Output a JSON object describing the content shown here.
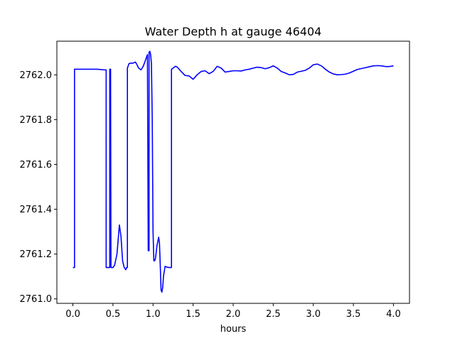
{
  "chart_data": {
    "type": "line",
    "title": "Water Depth h at gauge 46404",
    "xlabel": "hours",
    "ylabel": "",
    "xlim": [
      -0.2,
      4.2
    ],
    "ylim": [
      2760.98,
      2762.15
    ],
    "grid": false,
    "xticks": [
      0.0,
      0.5,
      1.0,
      1.5,
      2.0,
      2.5,
      3.0,
      3.5,
      4.0
    ],
    "xtick_labels": [
      "0.0",
      "0.5",
      "1.0",
      "1.5",
      "2.0",
      "2.5",
      "3.0",
      "3.5",
      "4.0"
    ],
    "yticks": [
      2761.0,
      2761.2,
      2761.4,
      2761.6,
      2761.8,
      2762.0
    ],
    "ytick_labels": [
      "2761.0",
      "2761.2",
      "2761.4",
      "2761.6",
      "2761.8",
      "2762.0"
    ],
    "series": [
      {
        "color": "#0000ff",
        "x": [
          0.0,
          0.02,
          0.02,
          0.05,
          0.1,
          0.2,
          0.3,
          0.4,
          0.415,
          0.415,
          0.46,
          0.46,
          0.47,
          0.475,
          0.48,
          0.48,
          0.5,
          0.52,
          0.55,
          0.58,
          0.6,
          0.62,
          0.64,
          0.66,
          0.67,
          0.68,
          0.68,
          0.7,
          0.72,
          0.75,
          0.78,
          0.8,
          0.82,
          0.85,
          0.88,
          0.9,
          0.93,
          0.94,
          0.95,
          0.95,
          0.96,
          0.96,
          0.97,
          0.98,
          0.99,
          1.0,
          1.01,
          1.02,
          1.03,
          1.05,
          1.07,
          1.08,
          1.09,
          1.1,
          1.11,
          1.12,
          1.13,
          1.15,
          1.17,
          1.2,
          1.23,
          1.23,
          1.25,
          1.28,
          1.3,
          1.35,
          1.4,
          1.45,
          1.5,
          1.55,
          1.6,
          1.65,
          1.7,
          1.75,
          1.8,
          1.85,
          1.9,
          1.95,
          2.0,
          2.05,
          2.1,
          2.15,
          2.2,
          2.25,
          2.3,
          2.35,
          2.4,
          2.45,
          2.5,
          2.55,
          2.6,
          2.65,
          2.7,
          2.75,
          2.8,
          2.85,
          2.9,
          2.95,
          3.0,
          3.05,
          3.1,
          3.15,
          3.2,
          3.25,
          3.3,
          3.35,
          3.4,
          3.45,
          3.5,
          3.55,
          3.6,
          3.65,
          3.7,
          3.75,
          3.8,
          3.85,
          3.9,
          3.95,
          4.0
        ],
        "y": [
          2761.14,
          2761.14,
          2762.025,
          2762.025,
          2762.025,
          2762.025,
          2762.025,
          2762.022,
          2762.022,
          2761.14,
          2761.14,
          2762.025,
          2762.025,
          2761.14,
          2761.14,
          2761.14,
          2761.14,
          2761.15,
          2761.2,
          2761.33,
          2761.28,
          2761.17,
          2761.14,
          2761.13,
          2761.14,
          2761.14,
          2762.03,
          2762.05,
          2762.052,
          2762.052,
          2762.057,
          2762.045,
          2762.03,
          2762.022,
          2762.04,
          2762.06,
          2762.09,
          2761.215,
          2761.215,
          2762.1,
          2762.105,
          2762.105,
          2762.09,
          2762.05,
          2761.8,
          2761.3,
          2761.17,
          2761.17,
          2761.18,
          2761.24,
          2761.275,
          2761.25,
          2761.15,
          2761.04,
          2761.03,
          2761.05,
          2761.1,
          2761.145,
          2761.142,
          2761.14,
          2761.14,
          2762.025,
          2762.03,
          2762.038,
          2762.035,
          2762.015,
          2761.997,
          2761.995,
          2761.98,
          2762.0,
          2762.015,
          2762.018,
          2762.005,
          2762.015,
          2762.038,
          2762.03,
          2762.012,
          2762.015,
          2762.018,
          2762.018,
          2762.017,
          2762.022,
          2762.025,
          2762.03,
          2762.034,
          2762.032,
          2762.027,
          2762.032,
          2762.04,
          2762.03,
          2762.015,
          2762.008,
          2762.0,
          2762.002,
          2762.012,
          2762.016,
          2762.02,
          2762.03,
          2762.045,
          2762.048,
          2762.04,
          2762.025,
          2762.012,
          2762.004,
          2762.0,
          2762.001,
          2762.003,
          2762.008,
          2762.016,
          2762.024,
          2762.028,
          2762.032,
          2762.036,
          2762.04,
          2762.041,
          2762.04,
          2762.037,
          2762.037,
          2762.04
        ]
      }
    ]
  }
}
